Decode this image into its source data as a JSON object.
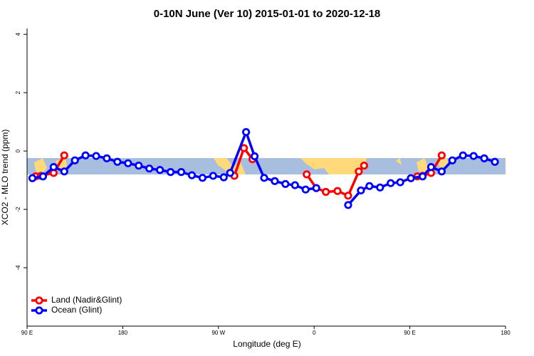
{
  "chart_data": {
    "type": "line",
    "title": "0-10N June (Ver 10)   2015-01-01 to 2020-12-18",
    "x_label": "Longitude (deg E)",
    "y_label": "XCO2 - MLO trend (ppm)",
    "xlim": [
      90,
      540
    ],
    "xticks": [
      {
        "value": 90,
        "label": "90 E"
      },
      {
        "value": 180,
        "label": "180"
      },
      {
        "value": 270,
        "label": "90 W"
      },
      {
        "value": 360,
        "label": "0"
      },
      {
        "value": 450,
        "label": "90 E"
      },
      {
        "value": 540,
        "label": "180"
      }
    ],
    "ylim": [
      -6,
      4.2
    ],
    "yticks": [
      4,
      2,
      0,
      -2,
      -4
    ],
    "legend": "bottom-left",
    "series": [
      {
        "name": "Land (Nadir&Glint)",
        "color": "#ff0000",
        "x": [
          98,
          103,
          115,
          125,
          200,
          285,
          294,
          302,
          330,
          353,
          362,
          371,
          382,
          392,
          402,
          407,
          430,
          457,
          462,
          470,
          480
        ],
        "values": [
          -0.87,
          -0.85,
          -0.75,
          -0.15,
          null,
          -0.85,
          0.1,
          -0.28,
          null,
          -0.8,
          -1.27,
          -1.4,
          -1.37,
          -1.53,
          -0.7,
          -0.5,
          null,
          -0.87,
          -0.85,
          -0.75,
          -0.15
        ]
      },
      {
        "name": "Ocean (Glint)",
        "color": "#0000ff",
        "x": [
          95,
          105,
          115,
          125,
          135,
          145,
          155,
          165,
          175,
          185,
          195,
          205,
          215,
          225,
          235,
          245,
          255,
          265,
          275,
          281,
          296,
          304,
          313,
          323,
          333,
          342,
          352,
          362,
          377,
          392,
          404,
          412,
          422,
          432,
          441,
          451,
          462,
          470,
          480,
          490,
          500,
          510,
          520,
          530
        ],
        "values": [
          -0.93,
          -0.87,
          -0.55,
          -0.7,
          -0.32,
          -0.15,
          -0.17,
          -0.25,
          -0.37,
          -0.42,
          -0.5,
          -0.6,
          -0.65,
          -0.72,
          -0.72,
          -0.83,
          -0.92,
          -0.85,
          -0.9,
          -0.75,
          0.65,
          -0.18,
          -0.92,
          -1.03,
          -1.13,
          -1.17,
          -1.32,
          -1.27,
          null,
          -1.85,
          -1.35,
          -1.2,
          -1.25,
          -1.1,
          -1.07,
          -0.93,
          -0.87,
          -0.55,
          -0.7,
          -0.32,
          -0.15,
          -0.17,
          -0.25,
          -0.37
        ]
      }
    ]
  }
}
